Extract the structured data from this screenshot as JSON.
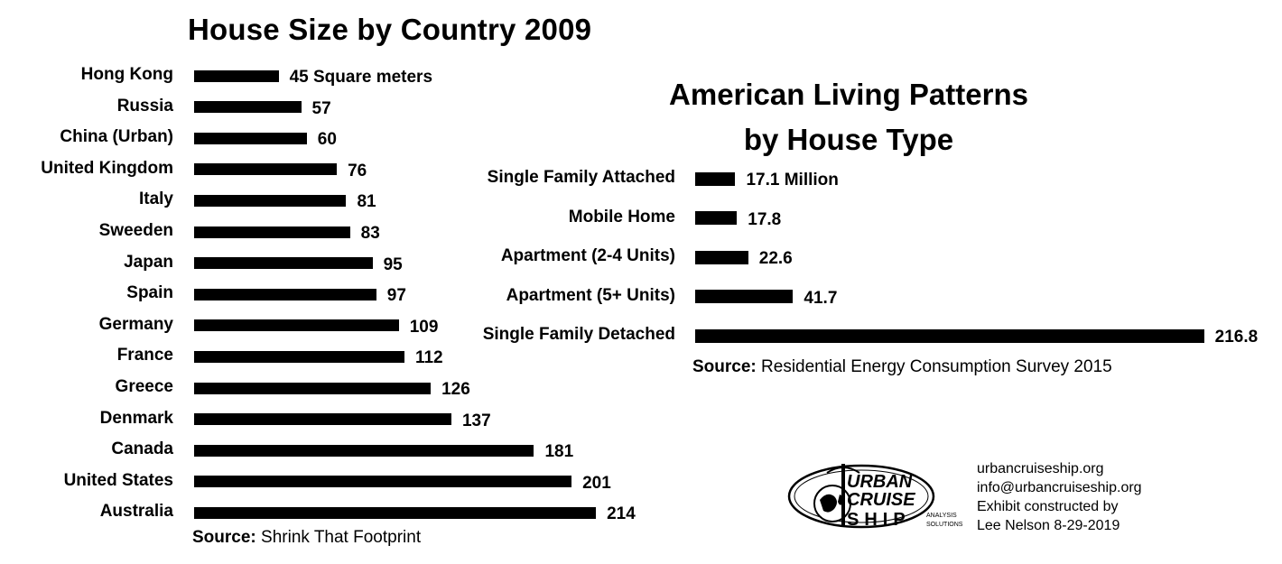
{
  "chart_data": [
    {
      "type": "bar",
      "orientation": "horizontal",
      "title": "House Size by Country 2009",
      "categories": [
        "Hong Kong",
        "Russia",
        "China (Urban)",
        "United Kingdom",
        "Italy",
        "Sweeden",
        "Japan",
        "Spain",
        "Germany",
        "France",
        "Greece",
        "Denmark",
        "Canada",
        "United States",
        "Australia"
      ],
      "values": [
        45,
        57,
        60,
        76,
        81,
        83,
        95,
        97,
        109,
        112,
        126,
        137,
        181,
        201,
        214
      ],
      "value_labels": [
        "45 Square meters",
        "57",
        "60",
        "76",
        "81",
        "83",
        "95",
        "97",
        "109",
        "112",
        "126",
        "137",
        "181",
        "201",
        "214"
      ],
      "source_label": "Source:",
      "source_text": "Shrink That Footprint",
      "grid": false
    },
    {
      "type": "bar",
      "orientation": "horizontal",
      "title_line1": "American Living Patterns",
      "title_line2": "by House Type",
      "categories": [
        "Single Family Attached",
        "Mobile Home",
        "Apartment (2-4 Units)",
        "Apartment (5+ Units)",
        "Single Family Detached"
      ],
      "values": [
        17.1,
        17.8,
        22.6,
        41.7,
        216.8
      ],
      "value_labels": [
        "17.1 Million",
        "17.8",
        "22.6",
        "41.7",
        "216.8"
      ],
      "source_label": "Source:",
      "source_text": "Residential Energy Consumption Survey 2015",
      "grid": false
    }
  ],
  "logo": {
    "line1": "URBAN",
    "line2": "CRUISE",
    "line3": "SHIP",
    "tag1": "ANALYSIS",
    "tag2": "SOLUTIONS"
  },
  "contact": {
    "website": "urbancruiseship.org",
    "email": "info@urbancruiseship.org",
    "credit1": "Exhibit constructed by",
    "credit2": "Lee Nelson 8-29-2019"
  }
}
